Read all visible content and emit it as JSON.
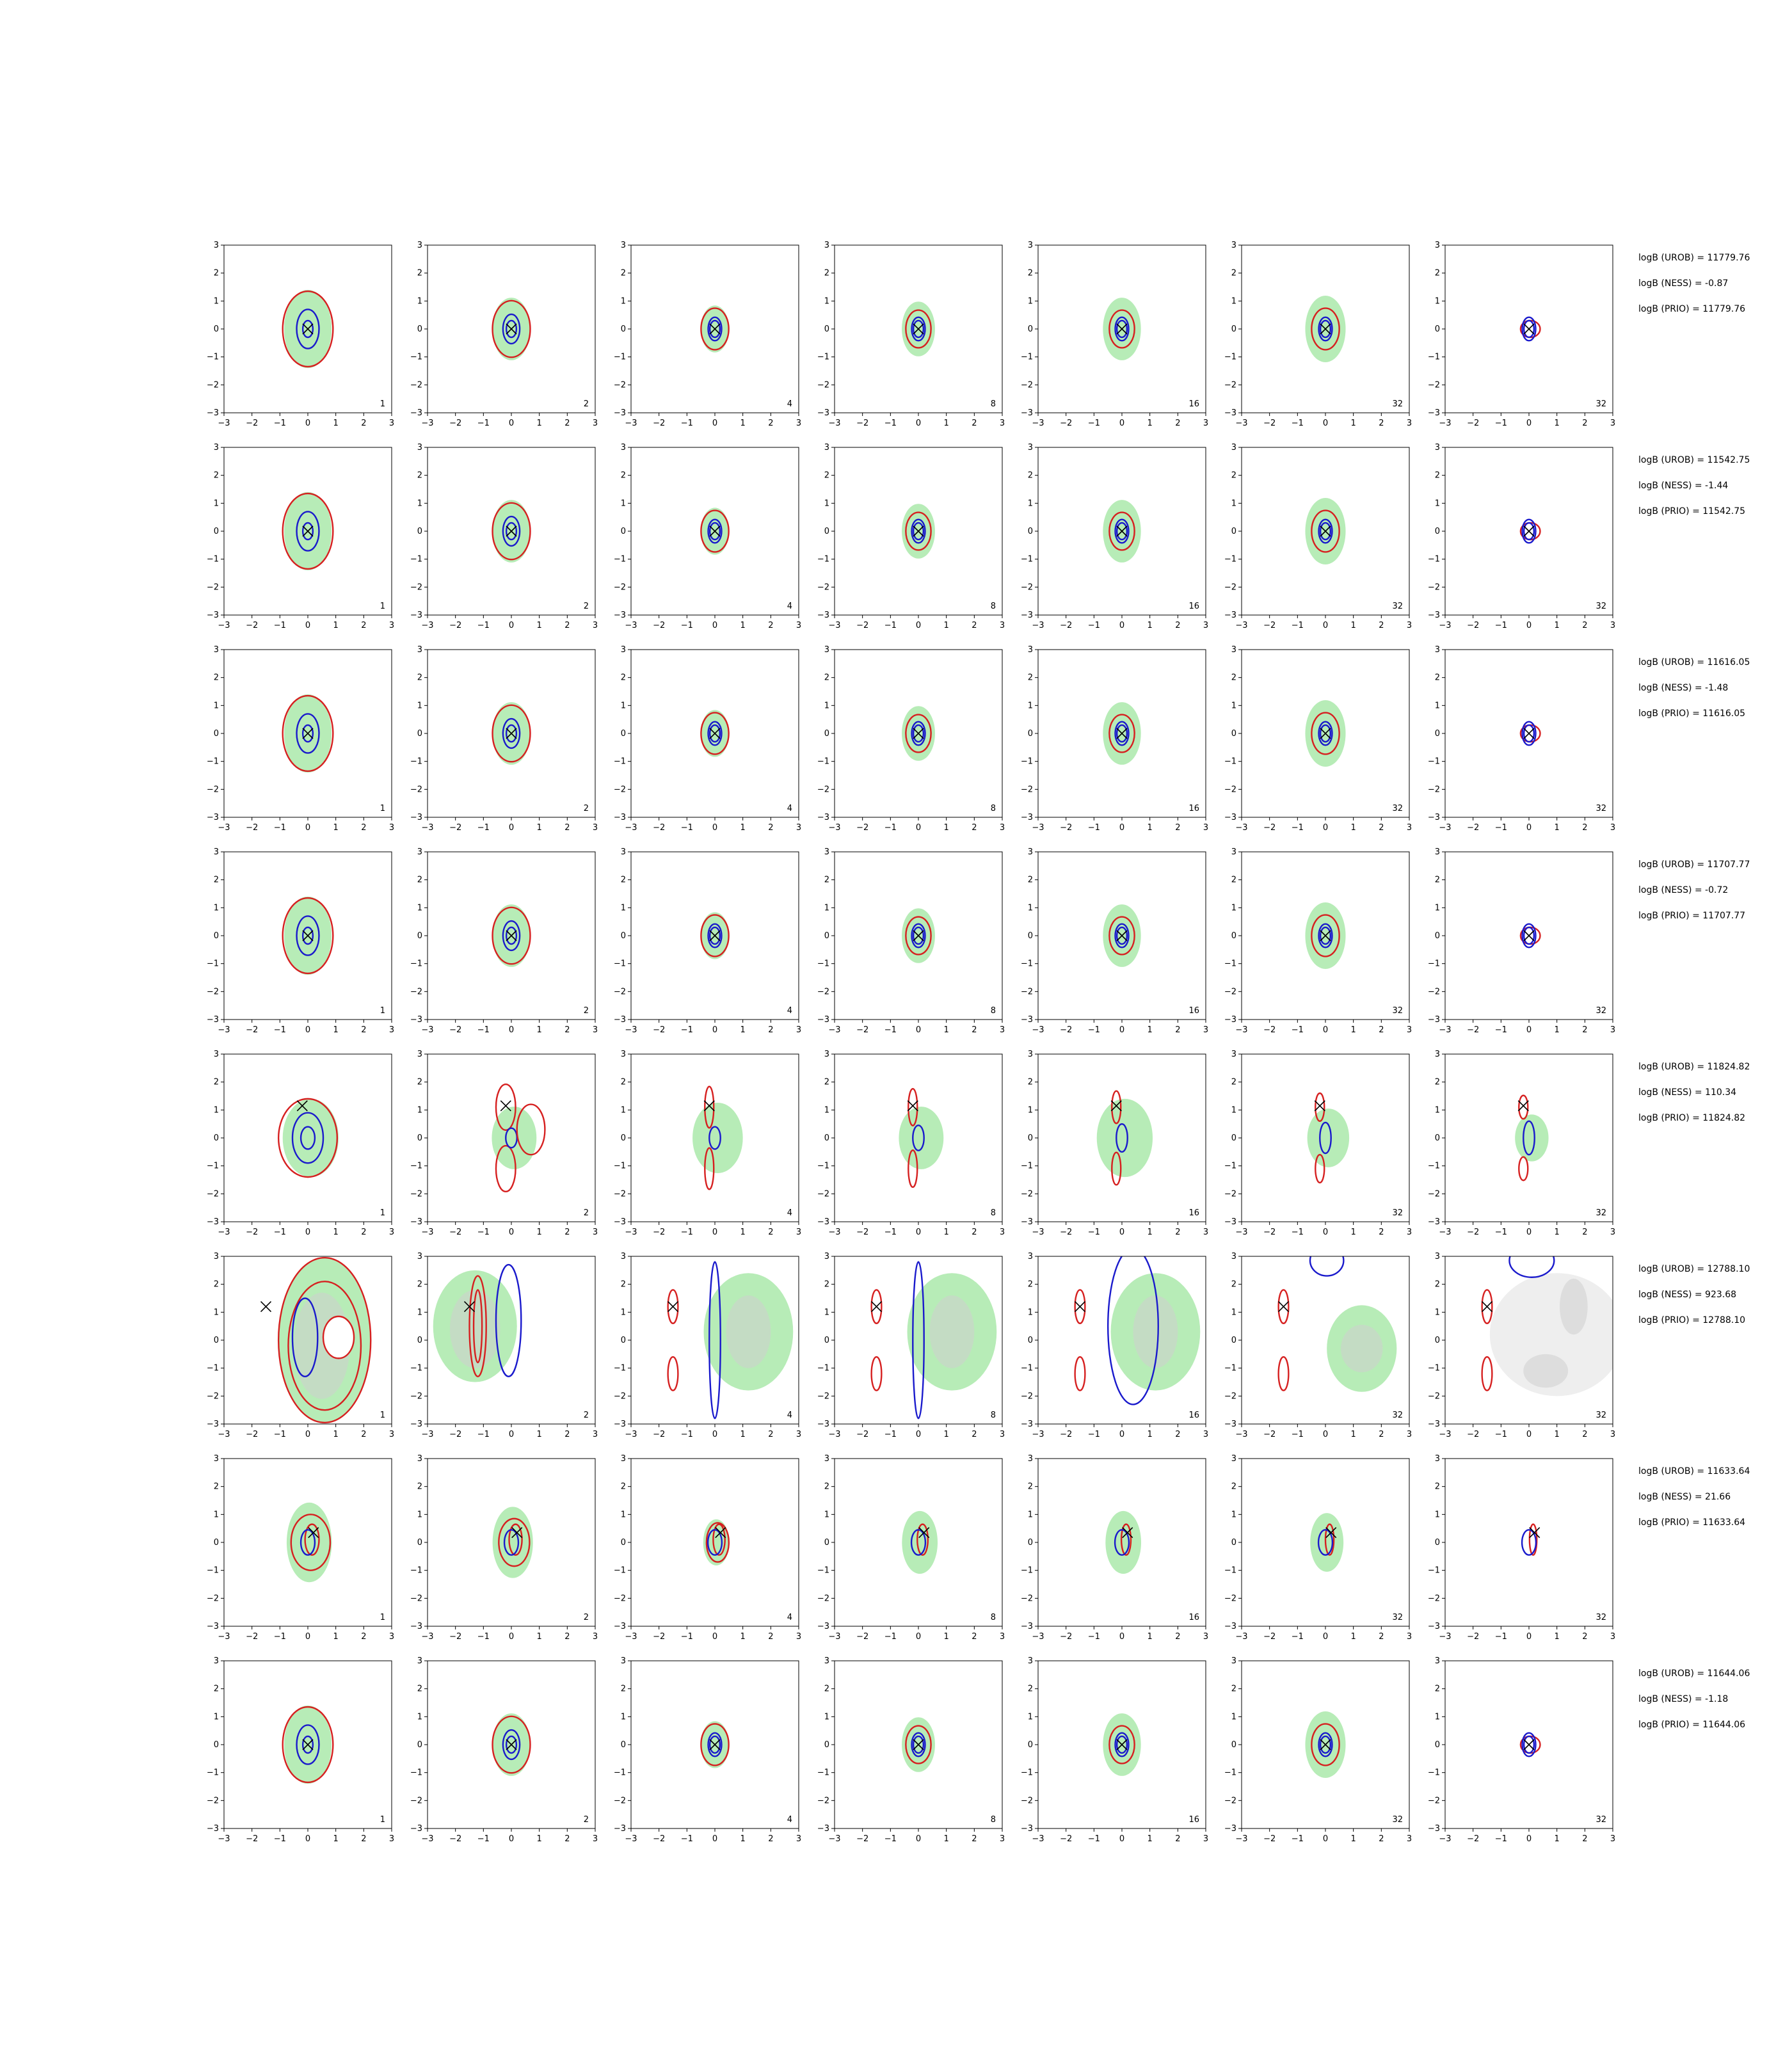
{
  "chart_data": {
    "type": "contour",
    "panel_grid": {
      "rows": 8,
      "cols": 7
    },
    "xlim": [
      -3,
      3
    ],
    "ylim": [
      -3,
      3
    ],
    "xticks": [
      "−3",
      "−2",
      "−1",
      "0",
      "1",
      "2",
      "3"
    ],
    "yticks": [
      "−3",
      "−2",
      "−1",
      "0",
      "1",
      "2",
      "3"
    ],
    "column_labels": [
      "1",
      "2",
      "4",
      "8",
      "16",
      "32",
      "32"
    ],
    "colors": {
      "red": "#d62020",
      "blue": "#1a1acc",
      "green": "#b7ecb7",
      "grey": "#cfcfcf"
    },
    "rows": [
      {
        "markers": [
          [
            0,
            0
          ]
        ],
        "stats": [
          "logB (UROB) = 11779.76",
          "logB (NESS) = -0.87",
          "logB (PRIO) = 11779.76"
        ]
      },
      {
        "markers": [
          [
            0,
            0
          ]
        ],
        "stats": [
          "logB (UROB) = 11542.75",
          "logB (NESS) = -1.44",
          "logB (PRIO) = 11542.75"
        ]
      },
      {
        "markers": [
          [
            0,
            0
          ]
        ],
        "stats": [
          "logB (UROB) = 11616.05",
          "logB (NESS) = -1.48",
          "logB (PRIO) = 11616.05"
        ]
      },
      {
        "markers": [
          [
            0,
            0
          ]
        ],
        "stats": [
          "logB (UROB) = 11707.77",
          "logB (NESS) = -0.72",
          "logB (PRIO) = 11707.77"
        ]
      },
      {
        "markers": [
          [
            -0.2,
            1.15
          ]
        ],
        "stats": [
          "logB (UROB) = 11824.82",
          "logB (NESS) = 110.34",
          "logB (PRIO) = 11824.82"
        ]
      },
      {
        "markers": [
          [
            -1.5,
            1.2
          ]
        ],
        "stats": [
          "logB (UROB) = 12788.10",
          "logB (NESS) = 923.68",
          "logB (PRIO) = 12788.10"
        ]
      },
      {
        "markers": [
          [
            0.2,
            0.35
          ]
        ],
        "stats": [
          "logB (UROB) = 11633.64",
          "logB (NESS) = 21.66",
          "logB (PRIO) = 11633.64"
        ]
      },
      {
        "markers": [
          [
            0,
            0
          ]
        ],
        "stats": [
          "logB (UROB) = 11644.06",
          "logB (NESS) = -1.18",
          "logB (PRIO) = 11644.06"
        ]
      }
    ]
  }
}
